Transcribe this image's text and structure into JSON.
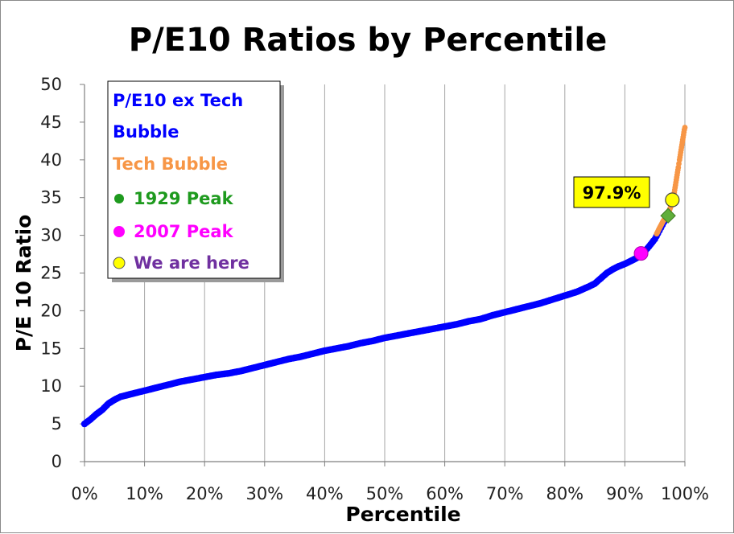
{
  "chart_data": {
    "type": "scatter",
    "title": "P/E10 Ratios by Percentile",
    "xlabel": "Percentile",
    "ylabel": "P/E 10 Ratio",
    "xlim": [
      0,
      100
    ],
    "ylim": [
      0,
      50
    ],
    "x_ticks": [
      "0%",
      "10%",
      "20%",
      "30%",
      "40%",
      "50%",
      "60%",
      "70%",
      "80%",
      "90%",
      "100%"
    ],
    "y_ticks": [
      "0",
      "5",
      "10",
      "15",
      "20",
      "25",
      "30",
      "35",
      "40",
      "45",
      "50"
    ],
    "grid": "vertical",
    "legend_position": "top-left",
    "series": [
      {
        "name": "P/E10 ex Tech Bubble",
        "color": "#0000ff",
        "points": [
          [
            0,
            5.0
          ],
          [
            1,
            5.6
          ],
          [
            2,
            6.3
          ],
          [
            3,
            6.9
          ],
          [
            4,
            7.7
          ],
          [
            5,
            8.2
          ],
          [
            6,
            8.6
          ],
          [
            7,
            8.8
          ],
          [
            8,
            9.0
          ],
          [
            9,
            9.2
          ],
          [
            10,
            9.4
          ],
          [
            12,
            9.8
          ],
          [
            14,
            10.2
          ],
          [
            16,
            10.6
          ],
          [
            18,
            10.9
          ],
          [
            20,
            11.2
          ],
          [
            22,
            11.5
          ],
          [
            24,
            11.7
          ],
          [
            26,
            12.0
          ],
          [
            28,
            12.4
          ],
          [
            30,
            12.8
          ],
          [
            32,
            13.2
          ],
          [
            34,
            13.6
          ],
          [
            36,
            13.9
          ],
          [
            38,
            14.3
          ],
          [
            40,
            14.7
          ],
          [
            42,
            15.0
          ],
          [
            44,
            15.3
          ],
          [
            46,
            15.7
          ],
          [
            48,
            16.0
          ],
          [
            50,
            16.4
          ],
          [
            52,
            16.7
          ],
          [
            54,
            17.0
          ],
          [
            56,
            17.3
          ],
          [
            58,
            17.6
          ],
          [
            60,
            17.9
          ],
          [
            62,
            18.2
          ],
          [
            64,
            18.6
          ],
          [
            66,
            18.9
          ],
          [
            68,
            19.4
          ],
          [
            70,
            19.8
          ],
          [
            72,
            20.2
          ],
          [
            74,
            20.6
          ],
          [
            76,
            21.0
          ],
          [
            78,
            21.5
          ],
          [
            80,
            22.0
          ],
          [
            82,
            22.5
          ],
          [
            84,
            23.2
          ],
          [
            85,
            23.6
          ],
          [
            86,
            24.3
          ],
          [
            87,
            25.0
          ],
          [
            88,
            25.5
          ],
          [
            89,
            25.9
          ],
          [
            90,
            26.2
          ],
          [
            91,
            26.6
          ],
          [
            92,
            27.0
          ],
          [
            93,
            27.6
          ],
          [
            94,
            28.5
          ],
          [
            95,
            29.5
          ],
          [
            96,
            31.0
          ],
          [
            97,
            32.5
          ]
        ]
      },
      {
        "name": "Tech Bubble",
        "color": "#f79646",
        "points": [
          [
            95.3,
            30.2
          ],
          [
            95.8,
            31.0
          ],
          [
            96.4,
            31.9
          ],
          [
            97.0,
            32.6
          ],
          [
            97.4,
            33.3
          ],
          [
            97.8,
            34.1
          ],
          [
            98.1,
            35.0
          ],
          [
            98.3,
            36.0
          ],
          [
            98.5,
            37.0
          ],
          [
            98.7,
            38.0
          ],
          [
            98.9,
            39.0
          ],
          [
            99.1,
            40.0
          ],
          [
            99.3,
            41.0
          ],
          [
            99.5,
            42.0
          ],
          [
            99.7,
            43.0
          ],
          [
            99.9,
            44.0
          ],
          [
            100,
            44.3
          ]
        ]
      },
      {
        "name": "1929 Peak",
        "color": "#5fae3a",
        "points": [
          [
            97.2,
            32.6
          ]
        ]
      },
      {
        "name": "2007 Peak",
        "color": "#ff00ff",
        "points": [
          [
            92.7,
            27.6
          ]
        ]
      },
      {
        "name": "We are here",
        "color": "#ffff00",
        "points": [
          [
            97.9,
            34.7
          ]
        ]
      }
    ],
    "annotations": [
      {
        "text": "97.9%",
        "x": 97.9,
        "y": 34.7
      }
    ]
  },
  "legend": {
    "items": [
      {
        "label_line1": "P/E10 ex Tech",
        "label_line2": "Bubble",
        "color": "#0000ff"
      },
      {
        "label": "Tech Bubble",
        "color": "#f79646"
      },
      {
        "label": "1929 Peak",
        "color": "#1e9a1e",
        "marker": "#1e9a1e"
      },
      {
        "label": "2007 Peak",
        "color": "#ff00ff",
        "marker": "#ff00ff"
      },
      {
        "label": "We are here",
        "color": "#7030a0",
        "marker": "#ffff00"
      }
    ]
  }
}
